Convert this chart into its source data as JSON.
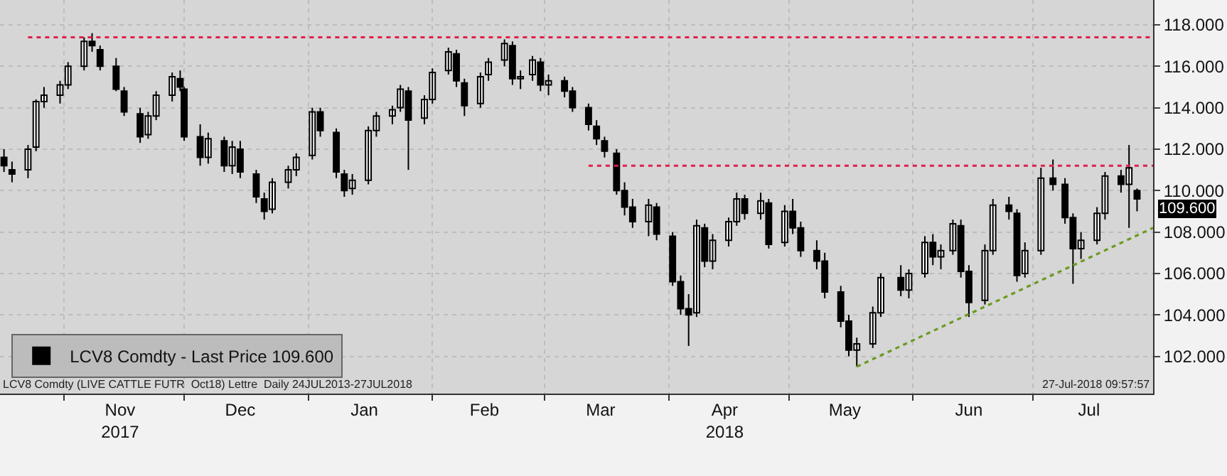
{
  "chart_data": {
    "type": "candlestick",
    "grid": true,
    "legend": "bottom left",
    "xlim": [
      "2017-10-16",
      "2018-07-31"
    ],
    "xticks": [
      {
        "value": "2017-11-01",
        "label": null
      },
      {
        "value": "2017-12-01",
        "label": null
      },
      {
        "value": "2018-01-01",
        "label": null
      },
      {
        "value": "2018-02-01",
        "label": null
      },
      {
        "value": "2018-03-01",
        "label": null
      },
      {
        "value": "2018-04-01",
        "label": null
      },
      {
        "value": "2018-05-01",
        "label": null
      },
      {
        "value": "2018-06-01",
        "label": null
      },
      {
        "value": "2018-07-01",
        "label": null
      },
      {
        "value": "2017-11-15",
        "label": "Nov\n2017"
      },
      {
        "value": "2017-12-15",
        "label": "Dec"
      },
      {
        "value": "2018-01-15",
        "label": "Jan"
      },
      {
        "value": "2018-02-14",
        "label": "Feb"
      },
      {
        "value": "2018-03-15",
        "label": "Mar"
      },
      {
        "value": "2018-04-15",
        "label": "Apr\n2018"
      },
      {
        "value": "2018-05-15",
        "label": "May"
      },
      {
        "value": "2018-06-15",
        "label": "Jun"
      },
      {
        "value": "2018-07-15",
        "label": "Jul"
      }
    ],
    "ylim": [
      100.2,
      119.2
    ],
    "yticks": [
      {
        "value": 102,
        "label": "102.000"
      },
      {
        "value": 104,
        "label": "104.000"
      },
      {
        "value": 106,
        "label": "106.000"
      },
      {
        "value": 108,
        "label": "108.000"
      },
      {
        "value": 110,
        "label": "110.000"
      },
      {
        "value": 112,
        "label": "112.000"
      },
      {
        "value": 114,
        "label": "114.000"
      },
      {
        "value": 116,
        "label": "116.000"
      },
      {
        "value": 118,
        "label": "118.000"
      }
    ],
    "annotations": [
      "LCV8 Comdty (LIVE CATTLE FUTR  Oct18) Lettre  Daily 24JUL2013-27JUL2018",
      "27-Jul-2018 09:57:57",
      {
        "text": "109.600",
        "x": "2018-07-27",
        "y": 109.6
      }
    ],
    "series": [
      {
        "name": "LCV8 Comdty - Last Price 109.600",
        "color": "#000000",
        "x": [
          "2017-10-17",
          "2017-10-19",
          "2017-10-23",
          "2017-10-25",
          "2017-10-27",
          "2017-10-31",
          "2017-11-02",
          "2017-11-06",
          "2017-11-08",
          "2017-11-10",
          "2017-11-14",
          "2017-11-16",
          "2017-11-20",
          "2017-11-22",
          "2017-11-24",
          "2017-11-28",
          "2017-11-30",
          "2017-12-01",
          "2017-12-05",
          "2017-12-07",
          "2017-12-11",
          "2017-12-13",
          "2017-12-15",
          "2017-12-19",
          "2017-12-21",
          "2017-12-23",
          "2017-12-27",
          "2017-12-29",
          "2018-01-02",
          "2018-01-04",
          "2018-01-08",
          "2018-01-10",
          "2018-01-12",
          "2018-01-16",
          "2018-01-18",
          "2018-01-22",
          "2018-01-24",
          "2018-01-26",
          "2018-01-30",
          "2018-02-01",
          "2018-02-05",
          "2018-02-07",
          "2018-02-09",
          "2018-02-13",
          "2018-02-15",
          "2018-02-19",
          "2018-02-21",
          "2018-02-23",
          "2018-02-26",
          "2018-02-28",
          "2018-03-02",
          "2018-03-06",
          "2018-03-08",
          "2018-03-12",
          "2018-03-14",
          "2018-03-16",
          "2018-03-19",
          "2018-03-21",
          "2018-03-23",
          "2018-03-27",
          "2018-03-29",
          "2018-04-02",
          "2018-04-04",
          "2018-04-06",
          "2018-04-08",
          "2018-04-10",
          "2018-04-12",
          "2018-04-16",
          "2018-04-18",
          "2018-04-20",
          "2018-04-24",
          "2018-04-26",
          "2018-04-30",
          "2018-05-02",
          "2018-05-04",
          "2018-05-08",
          "2018-05-10",
          "2018-05-14",
          "2018-05-16",
          "2018-05-18",
          "2018-05-22",
          "2018-05-24",
          "2018-05-29",
          "2018-05-31",
          "2018-06-04",
          "2018-06-06",
          "2018-06-08",
          "2018-06-11",
          "2018-06-13",
          "2018-06-15",
          "2018-06-19",
          "2018-06-21",
          "2018-06-25",
          "2018-06-27",
          "2018-06-29",
          "2018-07-03",
          "2018-07-06",
          "2018-07-09",
          "2018-07-11",
          "2018-07-13",
          "2018-07-17",
          "2018-07-19",
          "2018-07-23",
          "2018-07-25",
          "2018-07-27"
        ],
        "ohlc": [
          [
            111.6,
            112.0,
            110.9,
            111.2
          ],
          [
            111.0,
            111.4,
            110.4,
            110.8
          ],
          [
            111.0,
            112.2,
            110.6,
            112.0
          ],
          [
            112.1,
            114.4,
            111.9,
            114.3
          ],
          [
            114.3,
            115.0,
            114.0,
            114.6
          ],
          [
            114.6,
            115.3,
            114.2,
            115.1
          ],
          [
            115.1,
            116.2,
            114.9,
            116.0
          ],
          [
            116.0,
            117.4,
            115.8,
            117.2
          ],
          [
            117.2,
            117.6,
            116.7,
            117.0
          ],
          [
            116.8,
            117.0,
            115.8,
            116.0
          ],
          [
            116.0,
            116.4,
            114.8,
            114.9
          ],
          [
            114.8,
            115.0,
            113.6,
            113.8
          ],
          [
            113.7,
            114.0,
            112.3,
            112.6
          ],
          [
            112.7,
            113.8,
            112.5,
            113.6
          ],
          [
            113.6,
            114.8,
            113.4,
            114.6
          ],
          [
            114.6,
            115.7,
            114.3,
            115.5
          ],
          [
            115.4,
            115.8,
            114.8,
            115.0
          ],
          [
            114.9,
            115.0,
            112.4,
            112.6
          ],
          [
            112.6,
            113.2,
            111.2,
            111.6
          ],
          [
            111.6,
            112.8,
            111.3,
            112.5
          ],
          [
            112.4,
            112.6,
            110.9,
            111.2
          ],
          [
            111.2,
            112.4,
            110.8,
            112.1
          ],
          [
            112.0,
            112.4,
            110.6,
            110.9
          ],
          [
            110.8,
            111.0,
            109.4,
            109.7
          ],
          [
            109.6,
            109.9,
            108.6,
            109.0
          ],
          [
            109.1,
            110.6,
            108.9,
            110.4
          ],
          [
            110.4,
            111.2,
            110.1,
            111.0
          ],
          [
            111.0,
            111.8,
            110.7,
            111.6
          ],
          [
            111.7,
            114.0,
            111.5,
            113.8
          ],
          [
            113.8,
            114.0,
            112.6,
            112.9
          ],
          [
            112.8,
            113.0,
            110.6,
            110.9
          ],
          [
            110.8,
            111.0,
            109.7,
            110.0
          ],
          [
            110.1,
            110.8,
            109.8,
            110.5
          ],
          [
            110.5,
            113.1,
            110.3,
            112.9
          ],
          [
            112.9,
            113.8,
            112.6,
            113.6
          ],
          [
            113.6,
            114.1,
            113.2,
            113.9
          ],
          [
            114.0,
            115.1,
            113.8,
            114.9
          ],
          [
            114.8,
            115.0,
            111.0,
            113.4
          ],
          [
            113.5,
            114.6,
            113.2,
            114.4
          ],
          [
            114.4,
            115.9,
            114.2,
            115.7
          ],
          [
            115.8,
            116.9,
            115.6,
            116.7
          ],
          [
            116.6,
            116.8,
            115.0,
            115.3
          ],
          [
            115.2,
            115.4,
            113.6,
            114.1
          ],
          [
            114.2,
            115.7,
            114.0,
            115.5
          ],
          [
            115.6,
            116.4,
            115.3,
            116.2
          ],
          [
            116.3,
            117.3,
            116.0,
            117.1
          ],
          [
            117.0,
            117.2,
            115.1,
            115.4
          ],
          [
            115.4,
            115.8,
            114.9,
            115.5
          ],
          [
            115.6,
            116.5,
            115.3,
            116.3
          ],
          [
            116.2,
            116.4,
            114.8,
            115.1
          ],
          [
            115.1,
            115.6,
            114.6,
            115.3
          ],
          [
            115.3,
            115.5,
            114.5,
            114.8
          ],
          [
            114.8,
            115.0,
            113.8,
            114.0
          ],
          [
            114.0,
            114.2,
            112.9,
            113.2
          ],
          [
            113.1,
            113.4,
            112.2,
            112.5
          ],
          [
            112.4,
            112.6,
            111.6,
            111.9
          ],
          [
            111.8,
            112.0,
            109.8,
            110.0
          ],
          [
            110.0,
            110.4,
            108.8,
            109.2
          ],
          [
            109.2,
            109.6,
            108.2,
            108.5
          ],
          [
            108.5,
            109.6,
            107.8,
            109.3
          ],
          [
            109.2,
            109.4,
            107.6,
            107.9
          ],
          [
            107.8,
            108.0,
            105.4,
            105.6
          ],
          [
            105.6,
            105.9,
            104.0,
            104.3
          ],
          [
            104.3,
            105.0,
            102.5,
            104.0
          ],
          [
            104.1,
            108.6,
            103.9,
            108.3
          ],
          [
            108.2,
            108.4,
            106.3,
            106.6
          ],
          [
            106.6,
            107.9,
            106.2,
            107.6
          ],
          [
            107.6,
            108.7,
            107.3,
            108.5
          ],
          [
            108.5,
            109.9,
            108.3,
            109.6
          ],
          [
            109.6,
            109.8,
            108.6,
            108.9
          ],
          [
            108.9,
            109.9,
            108.6,
            109.5
          ],
          [
            109.4,
            109.6,
            107.2,
            107.4
          ],
          [
            107.5,
            109.3,
            107.3,
            109.0
          ],
          [
            109.0,
            109.6,
            107.9,
            108.2
          ],
          [
            108.2,
            108.5,
            106.8,
            107.1
          ],
          [
            107.1,
            107.6,
            106.2,
            106.6
          ],
          [
            106.6,
            107.0,
            104.8,
            105.1
          ],
          [
            105.1,
            105.4,
            103.4,
            103.7
          ],
          [
            103.7,
            104.0,
            102.0,
            102.3
          ],
          [
            102.3,
            102.9,
            101.5,
            102.6
          ],
          [
            102.6,
            104.4,
            102.4,
            104.1
          ],
          [
            104.1,
            106.0,
            103.9,
            105.8
          ],
          [
            105.8,
            106.4,
            104.9,
            105.2
          ],
          [
            105.2,
            106.2,
            104.8,
            106.0
          ],
          [
            106.0,
            107.8,
            105.8,
            107.5
          ],
          [
            107.5,
            107.9,
            106.4,
            106.8
          ],
          [
            106.8,
            107.4,
            106.2,
            107.1
          ],
          [
            107.1,
            108.6,
            106.9,
            108.4
          ],
          [
            108.3,
            108.6,
            105.8,
            106.1
          ],
          [
            106.1,
            106.4,
            103.9,
            104.6
          ],
          [
            104.7,
            107.4,
            104.5,
            107.1
          ],
          [
            107.1,
            109.6,
            106.9,
            109.3
          ],
          [
            109.3,
            109.7,
            108.6,
            109.0
          ],
          [
            108.9,
            109.1,
            105.6,
            105.9
          ],
          [
            106.0,
            107.5,
            105.8,
            107.1
          ],
          [
            107.1,
            111.1,
            106.9,
            110.6
          ],
          [
            110.6,
            111.5,
            110.0,
            110.3
          ],
          [
            110.3,
            110.6,
            108.4,
            108.7
          ],
          [
            108.7,
            108.9,
            105.5,
            107.2
          ],
          [
            107.2,
            108.0,
            106.7,
            107.6
          ],
          [
            107.6,
            109.2,
            107.4,
            108.9
          ],
          [
            108.9,
            110.9,
            108.6,
            110.7
          ],
          [
            110.7,
            111.0,
            109.9,
            110.3
          ],
          [
            110.3,
            112.2,
            108.2,
            111.1
          ],
          [
            110.0,
            110.1,
            109.0,
            109.6
          ]
        ]
      },
      {
        "type": "line",
        "color": "#e0204a",
        "line_style": "dotted",
        "x": [
          "2017-10-23",
          "2018-07-31"
        ],
        "values": [
          117.4,
          117.4
        ]
      },
      {
        "type": "line",
        "color": "#e0204a",
        "line_style": "dotted",
        "x": [
          "2018-03-12",
          "2018-07-31"
        ],
        "values": [
          111.2,
          111.2
        ]
      },
      {
        "type": "line",
        "color": "#6a9a1e",
        "line_style": "dotted",
        "x": [
          "2018-05-18",
          "2018-07-31"
        ],
        "values": [
          101.5,
          108.2
        ]
      }
    ]
  }
}
